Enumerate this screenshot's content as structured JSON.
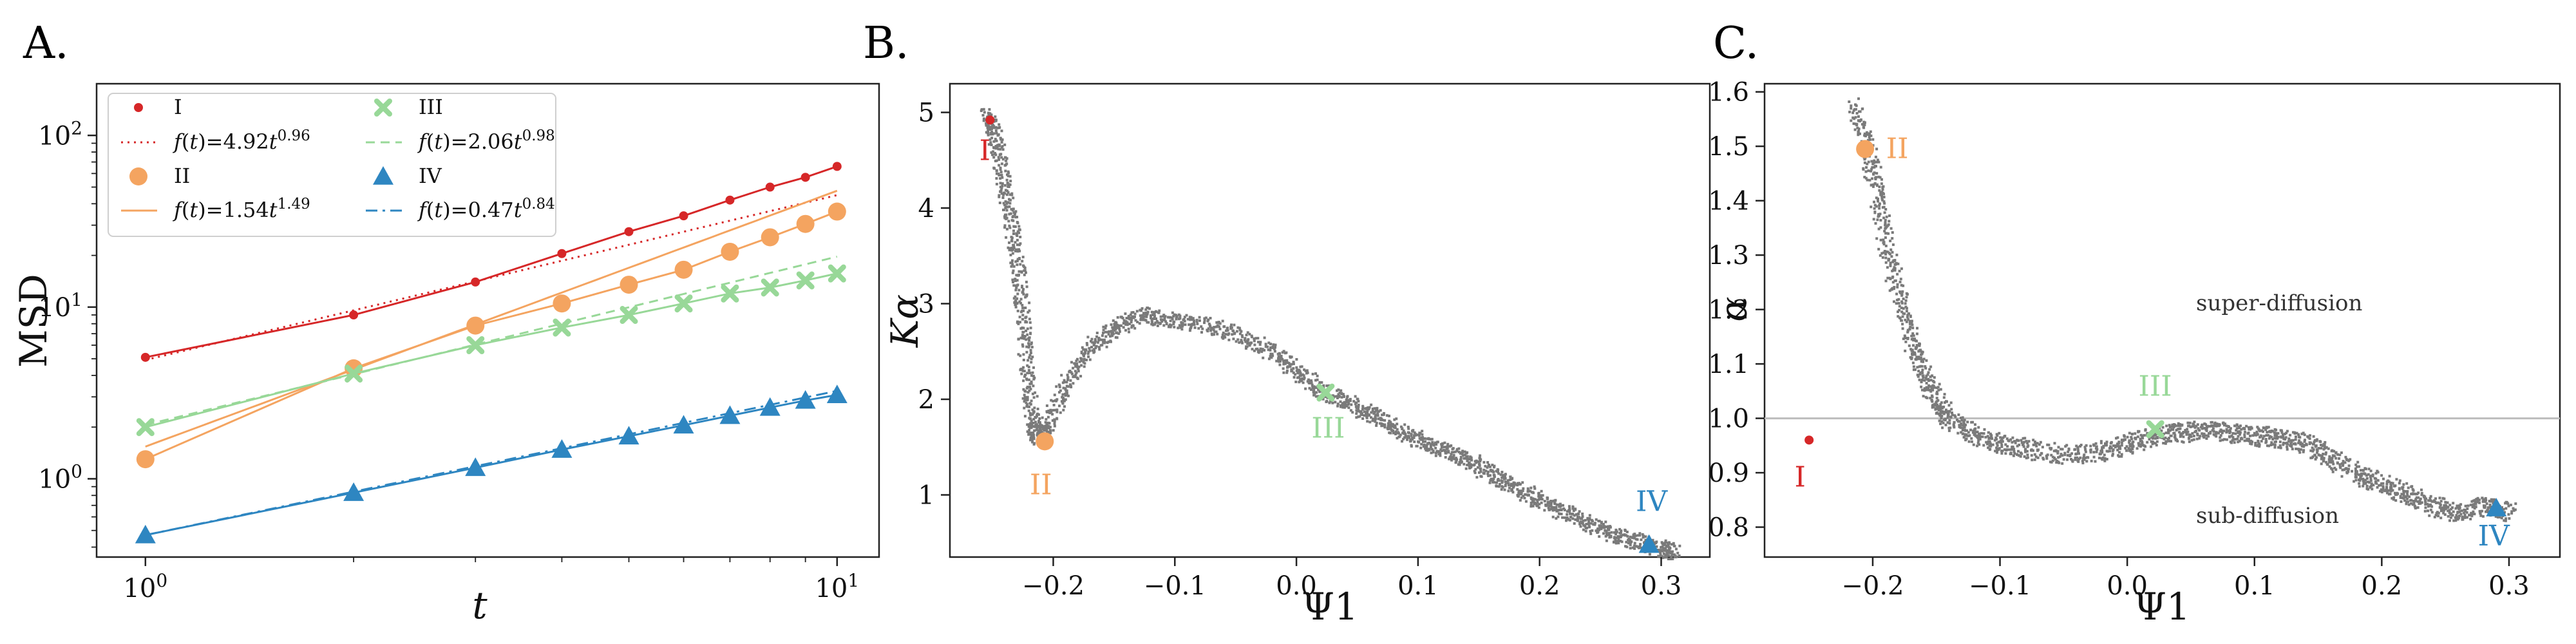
{
  "panel_labels": [
    "A.",
    "B.",
    "C."
  ],
  "chart_data": [
    {
      "type": "line",
      "panel": "A.",
      "xlabel": "t",
      "ylabel": "MSD",
      "xscale": "log",
      "yscale": "log",
      "xlim": [
        0.85,
        11.5
      ],
      "ylim": [
        0.35,
        200
      ],
      "grid": false,
      "legend_position": "top-left",
      "x_tick_labels": [
        "10^0",
        "10^1"
      ],
      "y_tick_labels": [
        "10^0",
        "10^1",
        "10^2"
      ],
      "x": [
        1,
        2,
        3,
        4,
        5,
        6,
        7,
        8,
        9,
        10
      ],
      "series": [
        {
          "name": "I",
          "color": "#d62728",
          "marker": "dot",
          "values": [
            5.1,
            9.0,
            14.0,
            20.5,
            27.5,
            34.0,
            42.0,
            50.0,
            57.0,
            66.0
          ]
        },
        {
          "name": "f(t)=4.92t^0.96",
          "color": "#d62728",
          "style": "dotted",
          "fit": {
            "a": 4.92,
            "b": 0.96
          }
        },
        {
          "name": "II",
          "color": "#f4a460",
          "marker": "circle",
          "values": [
            1.3,
            4.4,
            7.8,
            10.5,
            13.5,
            16.5,
            21.0,
            25.5,
            30.5,
            36.0
          ]
        },
        {
          "name": "f(t)=1.54t^1.49",
          "color": "#f4a460",
          "style": "solid",
          "fit": {
            "a": 1.54,
            "b": 1.49
          }
        },
        {
          "name": "III",
          "color": "#98d898",
          "marker": "x",
          "values": [
            2.0,
            4.1,
            6.0,
            7.6,
            9.0,
            10.5,
            12.0,
            13.0,
            14.3,
            15.7
          ]
        },
        {
          "name": "f(t)=2.06t^0.98",
          "color": "#98d898",
          "style": "dashed",
          "fit": {
            "a": 2.06,
            "b": 0.98
          }
        },
        {
          "name": "IV",
          "color": "#2e86c1",
          "marker": "triangle",
          "values": [
            0.47,
            0.83,
            1.16,
            1.48,
            1.77,
            2.05,
            2.33,
            2.6,
            2.86,
            3.08
          ]
        },
        {
          "name": "f(t)=0.47t^0.84",
          "color": "#2e86c1",
          "style": "dashdot",
          "fit": {
            "a": 0.47,
            "b": 0.84
          }
        }
      ]
    },
    {
      "type": "scatter",
      "panel": "B.",
      "xlabel": "Ψ1",
      "ylabel": "Kα",
      "xlim": [
        -0.285,
        0.34
      ],
      "ylim": [
        0.35,
        5.3
      ],
      "grid": false,
      "x_ticks": [
        -0.2,
        -0.1,
        0.0,
        0.1,
        0.2,
        0.3
      ],
      "x_tick_labels": [
        "−0.2",
        "−0.1",
        "0.0",
        "0.1",
        "0.2",
        "0.3"
      ],
      "y_ticks": [
        1,
        2,
        3,
        4,
        5
      ],
      "y_tick_labels": [
        "1",
        "2",
        "3",
        "4",
        "5"
      ],
      "cloud_color": "#7a7a7a",
      "trajectory": [
        [
          -0.255,
          4.98
        ],
        [
          -0.248,
          4.75
        ],
        [
          -0.242,
          4.3
        ],
        [
          -0.236,
          3.9
        ],
        [
          -0.23,
          3.4
        ],
        [
          -0.226,
          2.9
        ],
        [
          -0.222,
          2.3
        ],
        [
          -0.218,
          1.8
        ],
        [
          -0.214,
          1.6
        ],
        [
          -0.205,
          1.75
        ],
        [
          -0.19,
          2.2
        ],
        [
          -0.17,
          2.55
        ],
        [
          -0.15,
          2.75
        ],
        [
          -0.13,
          2.9
        ],
        [
          -0.11,
          2.85
        ],
        [
          -0.08,
          2.8
        ],
        [
          -0.05,
          2.7
        ],
        [
          -0.02,
          2.5
        ],
        [
          0.0,
          2.3
        ],
        [
          0.02,
          2.1
        ],
        [
          0.04,
          1.98
        ],
        [
          0.06,
          1.85
        ],
        [
          0.08,
          1.7
        ],
        [
          0.1,
          1.58
        ],
        [
          0.12,
          1.48
        ],
        [
          0.14,
          1.38
        ],
        [
          0.16,
          1.22
        ],
        [
          0.18,
          1.08
        ],
        [
          0.2,
          0.95
        ],
        [
          0.22,
          0.82
        ],
        [
          0.24,
          0.7
        ],
        [
          0.26,
          0.6
        ],
        [
          0.28,
          0.52
        ],
        [
          0.3,
          0.45
        ],
        [
          0.31,
          0.4
        ]
      ],
      "points": [
        {
          "label": "I",
          "color": "#d62728",
          "marker": "dot",
          "x": -0.252,
          "y": 4.92
        },
        {
          "label": "II",
          "color": "#f4a460",
          "marker": "circle",
          "x": -0.207,
          "y": 1.56
        },
        {
          "label": "III",
          "color": "#98d898",
          "marker": "x",
          "x": 0.024,
          "y": 2.07
        },
        {
          "label": "IV",
          "color": "#2e86c1",
          "marker": "triangle",
          "x": 0.29,
          "y": 0.48
        }
      ]
    },
    {
      "type": "scatter",
      "panel": "C.",
      "xlabel": "Ψ1",
      "ylabel": "α",
      "xlim": [
        -0.285,
        0.34
      ],
      "ylim": [
        0.745,
        1.615
      ],
      "grid": false,
      "x_ticks": [
        -0.2,
        -0.1,
        0.0,
        0.1,
        0.2,
        0.3
      ],
      "x_tick_labels": [
        "−0.2",
        "−0.1",
        "0.0",
        "0.1",
        "0.2",
        "0.3"
      ],
      "y_ticks": [
        0.8,
        0.9,
        1.0,
        1.1,
        1.2,
        1.3,
        1.4,
        1.5,
        1.6
      ],
      "y_tick_labels": [
        "0.8",
        "0.9",
        "1.0",
        "1.1",
        "1.2",
        "1.3",
        "1.4",
        "1.5",
        "1.6"
      ],
      "reference_line_y": 1.0,
      "annotations": [
        "super-diffusion",
        "sub-diffusion"
      ],
      "cloud_color": "#7a7a7a",
      "trajectory": [
        [
          -0.215,
          1.58
        ],
        [
          -0.205,
          1.5
        ],
        [
          -0.198,
          1.42
        ],
        [
          -0.19,
          1.32
        ],
        [
          -0.18,
          1.22
        ],
        [
          -0.17,
          1.14
        ],
        [
          -0.16,
          1.08
        ],
        [
          -0.15,
          1.03
        ],
        [
          -0.14,
          1.0
        ],
        [
          -0.12,
          0.97
        ],
        [
          -0.1,
          0.955
        ],
        [
          -0.08,
          0.945
        ],
        [
          -0.05,
          0.935
        ],
        [
          -0.02,
          0.94
        ],
        [
          0.0,
          0.955
        ],
        [
          0.02,
          0.97
        ],
        [
          0.04,
          0.975
        ],
        [
          0.06,
          0.98
        ],
        [
          0.08,
          0.975
        ],
        [
          0.1,
          0.97
        ],
        [
          0.12,
          0.965
        ],
        [
          0.14,
          0.955
        ],
        [
          0.16,
          0.93
        ],
        [
          0.18,
          0.9
        ],
        [
          0.2,
          0.88
        ],
        [
          0.22,
          0.86
        ],
        [
          0.24,
          0.84
        ],
        [
          0.26,
          0.83
        ],
        [
          0.28,
          0.84
        ],
        [
          0.3,
          0.83
        ]
      ],
      "points": [
        {
          "label": "I",
          "color": "#d62728",
          "marker": "dot",
          "x": -0.25,
          "y": 0.96
        },
        {
          "label": "II",
          "color": "#f4a460",
          "marker": "circle",
          "x": -0.206,
          "y": 1.495
        },
        {
          "label": "III",
          "color": "#98d898",
          "marker": "x",
          "x": 0.022,
          "y": 0.98
        },
        {
          "label": "IV",
          "color": "#2e86c1",
          "marker": "triangle",
          "x": 0.29,
          "y": 0.835
        }
      ]
    }
  ]
}
